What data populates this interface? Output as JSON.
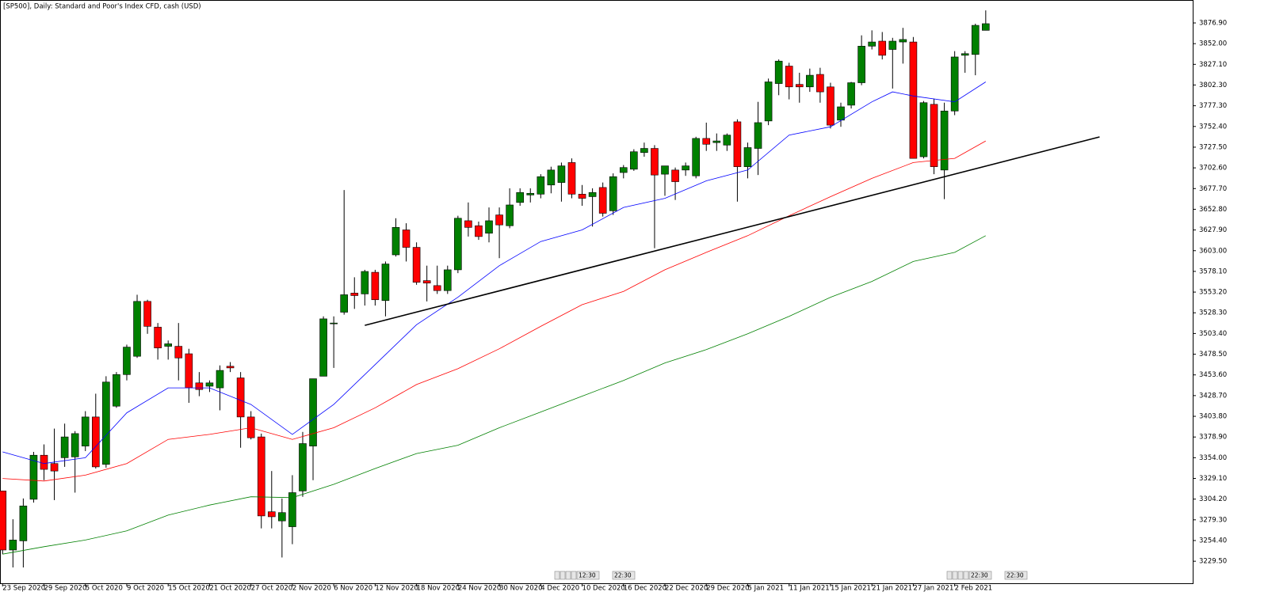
{
  "chart_data": {
    "type": "candlestick",
    "title": "[SP500], Daily:  Standard and Poor's Index CFD, cash (USD)",
    "categories": [
      "23 Sep 2020",
      null,
      null,
      null,
      "29 Sep 2020",
      null,
      null,
      null,
      "5 Oct 2020",
      null,
      null,
      null,
      "9 Oct 2020",
      null,
      null,
      null,
      "15 Oct 2020",
      null,
      null,
      null,
      "21 Oct 2020",
      null,
      null,
      null,
      "27 Oct 2020",
      null,
      null,
      null,
      "2 Nov 2020",
      null,
      null,
      null,
      "6 Nov 2020",
      null,
      null,
      null,
      "12 Nov 2020",
      null,
      null,
      null,
      "18 Nov 2020",
      null,
      null,
      null,
      "24 Nov 2020",
      null,
      null,
      null,
      "30 Nov 2020",
      null,
      null,
      null,
      "4 Dec 2020",
      null,
      null,
      null,
      "10 Dec 2020",
      null,
      null,
      null,
      "16 Dec 2020",
      null,
      null,
      null,
      "22 Dec 2020",
      null,
      null,
      null,
      "29 Dec 2020",
      null,
      null,
      null,
      "5 Jan 2021",
      null,
      null,
      null,
      "11 Jan 2021",
      null,
      null,
      null,
      "15 Jan 2021",
      null,
      null,
      null,
      "21 Jan 2021",
      null,
      null,
      null,
      "27 Jan 2021",
      null,
      null,
      null,
      "2 Feb 2021",
      null,
      null,
      null
    ],
    "open": [
      3314,
      3243,
      3254,
      3304,
      3357,
      3347,
      3354,
      3355,
      3368,
      3403,
      3346,
      3416,
      3454,
      3476,
      3542,
      3511,
      3488,
      3488,
      3479,
      3444,
      3440,
      3438,
      3464,
      3450,
      3403,
      3379,
      3289,
      3278,
      3271,
      3314,
      3368,
      3452,
      3515,
      3529,
      3552,
      3551,
      3577,
      3543,
      3598,
      3628,
      3607,
      3567,
      3561,
      3555,
      3580,
      3639,
      3633,
      3624,
      3646,
      3633,
      3661,
      3670,
      3671,
      3682,
      3685,
      3709,
      3671,
      3668,
      3679,
      3651,
      3697,
      3701,
      3721,
      3726,
      3695,
      3700,
      3700,
      3693,
      3738,
      3733,
      3730,
      3758,
      3704,
      3726,
      3759,
      3804,
      3825,
      3803,
      3800,
      3815,
      3800,
      3760,
      3778,
      3805,
      3849,
      3855,
      3845,
      3854,
      3854,
      3716,
      3779,
      3700,
      3771,
      3838,
      3839,
      3868
    ],
    "high": [
      3314,
      3280,
      3305,
      3361,
      3370,
      3389,
      3395,
      3386,
      3410,
      3431,
      3452,
      3457,
      3490,
      3550,
      3544,
      3516,
      3495,
      3516,
      3485,
      3457,
      3447,
      3465,
      3469,
      3457,
      3410,
      3383,
      3338,
      3305,
      3333,
      3385,
      3449,
      3524,
      3524,
      3676,
      3571,
      3580,
      3580,
      3590,
      3642,
      3636,
      3613,
      3585,
      3585,
      3585,
      3645,
      3661,
      3638,
      3655,
      3655,
      3678,
      3678,
      3678,
      3695,
      3704,
      3709,
      3714,
      3682,
      3678,
      3685,
      3696,
      3706,
      3725,
      3733,
      3730,
      3705,
      3703,
      3709,
      3740,
      3757,
      3744,
      3744,
      3761,
      3733,
      3782,
      3810,
      3833,
      3829,
      3817,
      3822,
      3823,
      3805,
      3781,
      3806,
      3862,
      3868,
      3866,
      3859,
      3871,
      3860,
      3783,
      3786,
      3781,
      3843,
      3843,
      3876,
      3892
    ],
    "low": [
      3238,
      3222,
      3222,
      3300,
      3327,
      3303,
      3343,
      3312,
      3362,
      3341,
      3342,
      3414,
      3447,
      3474,
      3503,
      3472,
      3472,
      3447,
      3420,
      3428,
      3433,
      3411,
      3457,
      3366,
      3376,
      3269,
      3269,
      3234,
      3250,
      3307,
      3327,
      3452,
      3462,
      3526,
      3533,
      3537,
      3537,
      3524,
      3596,
      3590,
      3562,
      3542,
      3551,
      3551,
      3576,
      3620,
      3616,
      3613,
      3594,
      3630,
      3657,
      3661,
      3666,
      3672,
      3662,
      3666,
      3657,
      3632,
      3644,
      3646,
      3690,
      3699,
      3716,
      3606,
      3669,
      3664,
      3693,
      3690,
      3723,
      3723,
      3723,
      3662,
      3690,
      3694,
      3754,
      3790,
      3785,
      3781,
      3794,
      3781,
      3750,
      3752,
      3774,
      3802,
      3845,
      3833,
      3798,
      3828,
      3714,
      3714,
      3695,
      3665,
      3766,
      3817,
      3814,
      3868
    ],
    "close": [
      3243,
      3255,
      3296,
      3357,
      3340,
      3338,
      3379,
      3383,
      3403,
      3343,
      3445,
      3454,
      3487,
      3542,
      3512,
      3486,
      3491,
      3474,
      3438,
      3436,
      3444,
      3459,
      3462,
      3403,
      3378,
      3284,
      3283,
      3288,
      3312,
      3371,
      3449,
      3521,
      3516,
      3550,
      3549,
      3578,
      3544,
      3587,
      3631,
      3607,
      3565,
      3564,
      3555,
      3580,
      3642,
      3631,
      3620,
      3639,
      3634,
      3658,
      3673,
      3672,
      3692,
      3700,
      3705,
      3671,
      3666,
      3673,
      3648,
      3692,
      3703,
      3722,
      3726,
      3694,
      3705,
      3686,
      3705,
      3738,
      3731,
      3735,
      3742,
      3704,
      3727,
      3757,
      3806,
      3831,
      3800,
      3800,
      3814,
      3794,
      3754,
      3776,
      3805,
      3849,
      3854,
      3838,
      3855,
      3857,
      3714,
      3781,
      3704,
      3771,
      3836,
      3840,
      3874,
      3876
    ],
    "up_color": "#008000",
    "down_color": "#ff0000",
    "lines": [
      {
        "color": "#0000ff",
        "x": [
          0,
          4,
          8,
          12,
          16,
          20,
          24,
          28,
          32,
          36,
          40,
          44,
          48,
          52,
          56,
          60,
          64,
          68,
          72,
          76,
          80,
          84,
          86,
          88,
          92,
          95
        ],
        "values": [
          3361,
          3347,
          3354,
          3408,
          3438,
          3438,
          3418,
          3382,
          3418,
          3466,
          3514,
          3547,
          3585,
          3614,
          3628,
          3655,
          3666,
          3687,
          3700,
          3742,
          3752,
          3782,
          3794,
          3789,
          3782,
          3806
        ]
      },
      {
        "color": "#ff0000",
        "x": [
          0,
          4,
          8,
          12,
          16,
          20,
          24,
          28,
          32,
          36,
          40,
          44,
          48,
          52,
          56,
          60,
          64,
          68,
          72,
          76,
          80,
          84,
          88,
          92,
          95
        ],
        "values": [
          3329,
          3326,
          3333,
          3347,
          3376,
          3382,
          3390,
          3376,
          3390,
          3414,
          3442,
          3461,
          3485,
          3512,
          3538,
          3554,
          3580,
          3601,
          3621,
          3645,
          3668,
          3690,
          3709,
          3714,
          3735
        ]
      },
      {
        "color": "#008000",
        "x": [
          0,
          4,
          8,
          12,
          16,
          20,
          24,
          28,
          32,
          36,
          40,
          44,
          48,
          52,
          56,
          60,
          64,
          68,
          72,
          76,
          80,
          84,
          88,
          92,
          95
        ],
        "values": [
          3238,
          3247,
          3255,
          3266,
          3285,
          3297,
          3307,
          3306,
          3322,
          3341,
          3359,
          3369,
          3390,
          3409,
          3428,
          3447,
          3468,
          3484,
          3503,
          3524,
          3547,
          3566,
          3590,
          3601,
          3621
        ]
      }
    ],
    "trendline": {
      "color": "#000000",
      "x": [
        35,
        106
      ],
      "values": [
        3513.2,
        3739.8
      ]
    },
    "xlim": [
      -0.25,
      115
    ],
    "ylim": [
      3203,
      3904.5
    ],
    "yticks": [
      {
        "value": 3876.9,
        "label": "3876.90"
      },
      {
        "value": 3852,
        "label": "3852.00"
      },
      {
        "value": 3827.1,
        "label": "3827.10"
      },
      {
        "value": 3802.3,
        "label": "3802.30"
      },
      {
        "value": 3777.3,
        "label": "3777.30"
      },
      {
        "value": 3752.4,
        "label": "3752.40"
      },
      {
        "value": 3727.5,
        "label": "3727.50"
      },
      {
        "value": 3702.6,
        "label": "3702.60"
      },
      {
        "value": 3677.7,
        "label": "3677.70"
      },
      {
        "value": 3652.8,
        "label": "3652.80"
      },
      {
        "value": 3627.9,
        "label": "3627.90"
      },
      {
        "value": 3603,
        "label": "3603.00"
      },
      {
        "value": 3578.1,
        "label": "3578.10"
      },
      {
        "value": 3553.2,
        "label": "3553.20"
      },
      {
        "value": 3528.3,
        "label": "3528.30"
      },
      {
        "value": 3503.4,
        "label": "3503.40"
      },
      {
        "value": 3478.5,
        "label": "3478.50"
      },
      {
        "value": 3453.6,
        "label": "3453.60"
      },
      {
        "value": 3428.7,
        "label": "3428.70"
      },
      {
        "value": 3403.8,
        "label": "3403.80"
      },
      {
        "value": 3378.9,
        "label": "3378.90"
      },
      {
        "value": 3354,
        "label": "3354.00"
      },
      {
        "value": 3329.1,
        "label": "3329.10"
      },
      {
        "value": 3304.2,
        "label": "3304.20"
      },
      {
        "value": 3279.3,
        "label": "3279.30"
      },
      {
        "value": 3254.4,
        "label": "3254.40"
      },
      {
        "value": 3229.5,
        "label": "3229.50"
      }
    ],
    "grid": false,
    "scroll_markers": [
      [
        "12:30",
        "22:30"
      ],
      [
        "22:30",
        "22:30"
      ]
    ]
  }
}
